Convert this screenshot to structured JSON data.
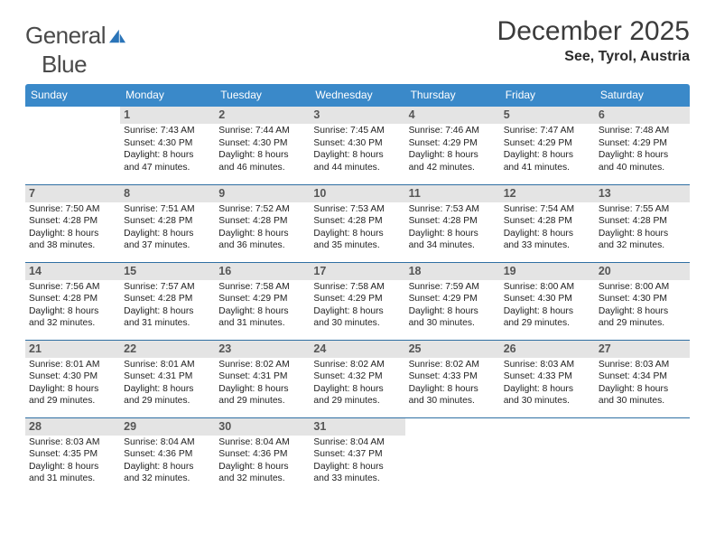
{
  "brand": {
    "word1": "General",
    "word2": "Blue",
    "accent_color": "#2a74b8",
    "text_color": "#4a4a4a"
  },
  "title": "December 2025",
  "location": "See, Tyrol, Austria",
  "header_bg": "#3a89c9",
  "header_fg": "#ffffff",
  "daynum_bg": "#e4e4e4",
  "rule_color": "#2f6fa3",
  "dow": [
    "Sunday",
    "Monday",
    "Tuesday",
    "Wednesday",
    "Thursday",
    "Friday",
    "Saturday"
  ],
  "weeks": [
    [
      null,
      {
        "n": "1",
        "sr": "7:43 AM",
        "ss": "4:30 PM",
        "d": "8 hours and 47 minutes."
      },
      {
        "n": "2",
        "sr": "7:44 AM",
        "ss": "4:30 PM",
        "d": "8 hours and 46 minutes."
      },
      {
        "n": "3",
        "sr": "7:45 AM",
        "ss": "4:30 PM",
        "d": "8 hours and 44 minutes."
      },
      {
        "n": "4",
        "sr": "7:46 AM",
        "ss": "4:29 PM",
        "d": "8 hours and 42 minutes."
      },
      {
        "n": "5",
        "sr": "7:47 AM",
        "ss": "4:29 PM",
        "d": "8 hours and 41 minutes."
      },
      {
        "n": "6",
        "sr": "7:48 AM",
        "ss": "4:29 PM",
        "d": "8 hours and 40 minutes."
      }
    ],
    [
      {
        "n": "7",
        "sr": "7:50 AM",
        "ss": "4:28 PM",
        "d": "8 hours and 38 minutes."
      },
      {
        "n": "8",
        "sr": "7:51 AM",
        "ss": "4:28 PM",
        "d": "8 hours and 37 minutes."
      },
      {
        "n": "9",
        "sr": "7:52 AM",
        "ss": "4:28 PM",
        "d": "8 hours and 36 minutes."
      },
      {
        "n": "10",
        "sr": "7:53 AM",
        "ss": "4:28 PM",
        "d": "8 hours and 35 minutes."
      },
      {
        "n": "11",
        "sr": "7:53 AM",
        "ss": "4:28 PM",
        "d": "8 hours and 34 minutes."
      },
      {
        "n": "12",
        "sr": "7:54 AM",
        "ss": "4:28 PM",
        "d": "8 hours and 33 minutes."
      },
      {
        "n": "13",
        "sr": "7:55 AM",
        "ss": "4:28 PM",
        "d": "8 hours and 32 minutes."
      }
    ],
    [
      {
        "n": "14",
        "sr": "7:56 AM",
        "ss": "4:28 PM",
        "d": "8 hours and 32 minutes."
      },
      {
        "n": "15",
        "sr": "7:57 AM",
        "ss": "4:28 PM",
        "d": "8 hours and 31 minutes."
      },
      {
        "n": "16",
        "sr": "7:58 AM",
        "ss": "4:29 PM",
        "d": "8 hours and 31 minutes."
      },
      {
        "n": "17",
        "sr": "7:58 AM",
        "ss": "4:29 PM",
        "d": "8 hours and 30 minutes."
      },
      {
        "n": "18",
        "sr": "7:59 AM",
        "ss": "4:29 PM",
        "d": "8 hours and 30 minutes."
      },
      {
        "n": "19",
        "sr": "8:00 AM",
        "ss": "4:30 PM",
        "d": "8 hours and 29 minutes."
      },
      {
        "n": "20",
        "sr": "8:00 AM",
        "ss": "4:30 PM",
        "d": "8 hours and 29 minutes."
      }
    ],
    [
      {
        "n": "21",
        "sr": "8:01 AM",
        "ss": "4:30 PM",
        "d": "8 hours and 29 minutes."
      },
      {
        "n": "22",
        "sr": "8:01 AM",
        "ss": "4:31 PM",
        "d": "8 hours and 29 minutes."
      },
      {
        "n": "23",
        "sr": "8:02 AM",
        "ss": "4:31 PM",
        "d": "8 hours and 29 minutes."
      },
      {
        "n": "24",
        "sr": "8:02 AM",
        "ss": "4:32 PM",
        "d": "8 hours and 29 minutes."
      },
      {
        "n": "25",
        "sr": "8:02 AM",
        "ss": "4:33 PM",
        "d": "8 hours and 30 minutes."
      },
      {
        "n": "26",
        "sr": "8:03 AM",
        "ss": "4:33 PM",
        "d": "8 hours and 30 minutes."
      },
      {
        "n": "27",
        "sr": "8:03 AM",
        "ss": "4:34 PM",
        "d": "8 hours and 30 minutes."
      }
    ],
    [
      {
        "n": "28",
        "sr": "8:03 AM",
        "ss": "4:35 PM",
        "d": "8 hours and 31 minutes."
      },
      {
        "n": "29",
        "sr": "8:04 AM",
        "ss": "4:36 PM",
        "d": "8 hours and 32 minutes."
      },
      {
        "n": "30",
        "sr": "8:04 AM",
        "ss": "4:36 PM",
        "d": "8 hours and 32 minutes."
      },
      {
        "n": "31",
        "sr": "8:04 AM",
        "ss": "4:37 PM",
        "d": "8 hours and 33 minutes."
      },
      null,
      null,
      null
    ]
  ],
  "labels": {
    "sunrise": "Sunrise:",
    "sunset": "Sunset:",
    "daylight": "Daylight:"
  }
}
